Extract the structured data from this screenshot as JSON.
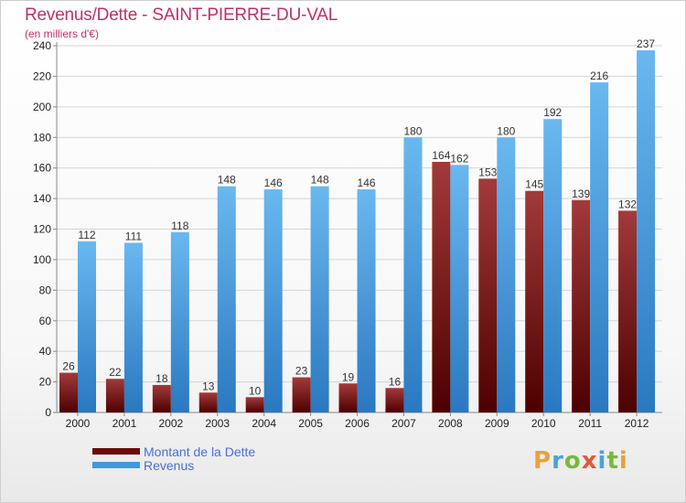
{
  "header": {
    "title": "Revenus/Dette - SAINT-PIERRE-DU-VAL",
    "subtitle": "(en milliers d'€)"
  },
  "legend": {
    "items": [
      {
        "label": "Montant de la Dette",
        "color": "#6b0a0a"
      },
      {
        "label": "Revenus",
        "color": "#3d9ae0"
      }
    ]
  },
  "logo": {
    "letters": [
      "P",
      "r",
      "o",
      "x",
      "i",
      "t",
      "i"
    ],
    "colors": [
      "#e8a23a",
      "#4aa3d8",
      "#7ab83a",
      "#e0573a",
      "#4aa3d8",
      "#7ab83a",
      "#e8a23a"
    ]
  },
  "colors": {
    "dette_top": "#a23a3a",
    "dette_bottom": "#4d0000",
    "revenus_top": "#6ab8ef",
    "revenus_bottom": "#2a78c0",
    "axis": "#888888",
    "grid": "#d4d4d4",
    "tick_text": "#222222",
    "value_text": "#333333"
  },
  "chart_data": {
    "type": "bar",
    "categories": [
      "2000",
      "2001",
      "2002",
      "2003",
      "2004",
      "2005",
      "2006",
      "2007",
      "2008",
      "2009",
      "2010",
      "2011",
      "2012"
    ],
    "series": [
      {
        "name": "Montant de la Dette",
        "values": [
          26,
          22,
          18,
          13,
          10,
          23,
          19,
          16,
          164,
          153,
          145,
          139,
          132
        ]
      },
      {
        "name": "Revenus",
        "values": [
          112,
          111,
          118,
          148,
          146,
          148,
          146,
          180,
          162,
          180,
          192,
          216,
          237
        ]
      }
    ],
    "ylim": [
      0,
      240
    ],
    "yticks": [
      0,
      20,
      40,
      60,
      80,
      100,
      120,
      140,
      160,
      180,
      200,
      220,
      240
    ],
    "grid": true,
    "legend_position": "bottom-left"
  }
}
